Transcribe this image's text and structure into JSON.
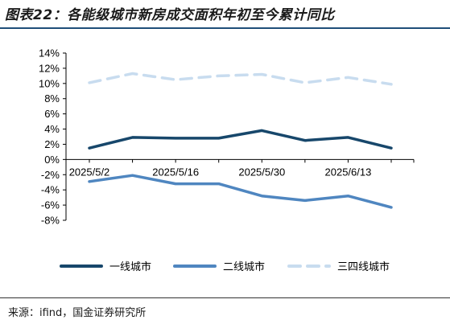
{
  "header": {
    "title": "图表22：各能级城市新房成交面积年初至今累计同比"
  },
  "footer": {
    "source": "来源：ifind，国金证券研究所"
  },
  "chart_data": {
    "type": "line",
    "title": "图表22：各能级城市新房成交面积年初至今累计同比",
    "xlabel": "",
    "ylabel": "",
    "x_tick_labels": [
      "2025/5/2",
      "2025/5/16",
      "2025/5/30",
      "2025/6/13"
    ],
    "y_tick_labels": [
      "14%",
      "12%",
      "10%",
      "8%",
      "6%",
      "4%",
      "2%",
      "0%",
      "-2%",
      "-4%",
      "-6%",
      "-8%"
    ],
    "ylim": [
      -8,
      14
    ],
    "y_unit": "%",
    "x": [
      "2025/5/2",
      "2025/5/9",
      "2025/5/16",
      "2025/5/23",
      "2025/5/30",
      "2025/6/6",
      "2025/6/13",
      "2025/6/20"
    ],
    "series": [
      {
        "name": "一线城市",
        "color": "#17476b",
        "dash": "solid",
        "values": [
          1.5,
          2.9,
          2.8,
          2.8,
          3.8,
          2.5,
          2.9,
          1.5
        ]
      },
      {
        "name": "二线城市",
        "color": "#4f86c0",
        "dash": "solid",
        "values": [
          -2.9,
          -2.1,
          -3.2,
          -3.2,
          -4.8,
          -5.4,
          -4.8,
          -6.3
        ]
      },
      {
        "name": "三四线城市",
        "color": "#c8dcef",
        "dash": "dashed",
        "values": [
          10.1,
          11.3,
          10.5,
          11.0,
          11.2,
          10.1,
          10.8,
          9.9
        ]
      }
    ],
    "legend_position": "bottom",
    "grid": false
  }
}
